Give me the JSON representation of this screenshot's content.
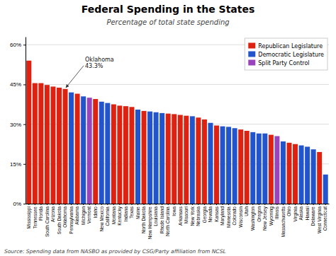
{
  "chart_data": {
    "type": "bar",
    "title": "Federal Spending in the States",
    "subtitle": "Percentage of total state spending",
    "source": "Source: Spending data from NASBO as provided by CSG/Party affiliation from NCSL",
    "categories": [
      "Mississippi",
      "Tennessee",
      "Florida",
      "South Carolina",
      "Arizona",
      "South Dakota",
      "Oklahoma",
      "Pennsylvania",
      "Alabama",
      "Michigan",
      "Vermont",
      "Idaho",
      "New Mexico",
      "California",
      "Montana",
      "Kentucky",
      "Indiana",
      "Texas",
      "Maine",
      "North Dakota",
      "New Hampshire",
      "Louisiana",
      "Rhode Island",
      "North Carolina",
      "Iowa",
      "Arkansas",
      "Missouri",
      "New York",
      "Nebraska",
      "Georgia",
      "Nevada",
      "Kansas",
      "Maryland",
      "Minnesota",
      "Colorado",
      "Wisconsin",
      "Utah",
      "Washington",
      "Oregon",
      "New Jersey",
      "Wyoming",
      "Illinois",
      "Massachusetts",
      "Ohio",
      "Virginia",
      "Alaska",
      "Hawaii",
      "Delaware",
      "West Virginia",
      "Connecticut"
    ],
    "values": [
      54.0,
      45.5,
      45.5,
      44.8,
      44.2,
      43.8,
      43.3,
      42.0,
      41.5,
      40.5,
      40.0,
      39.5,
      38.5,
      38.0,
      37.5,
      37.0,
      36.8,
      36.5,
      35.5,
      35.0,
      34.8,
      34.5,
      34.2,
      34.0,
      33.8,
      33.5,
      33.2,
      33.0,
      32.5,
      31.8,
      30.5,
      29.5,
      29.2,
      29.0,
      28.5,
      28.0,
      27.5,
      27.0,
      26.5,
      26.5,
      26.0,
      25.5,
      23.5,
      23.0,
      22.5,
      22.0,
      21.5,
      20.5,
      19.5,
      11.0
    ],
    "colors": [
      "#dd2211",
      "#dd2211",
      "#dd2211",
      "#dd2211",
      "#dd2211",
      "#dd2211",
      "#dd2211",
      "#2255cc",
      "#dd2211",
      "#2255cc",
      "#9944bb",
      "#dd2211",
      "#2255cc",
      "#2255cc",
      "#dd2211",
      "#dd2211",
      "#dd2211",
      "#dd2211",
      "#2255cc",
      "#dd2211",
      "#2255cc",
      "#2255cc",
      "#2255cc",
      "#dd2211",
      "#dd2211",
      "#dd2211",
      "#dd2211",
      "#2255cc",
      "#dd2211",
      "#dd2211",
      "#2255cc",
      "#dd2211",
      "#2255cc",
      "#2255cc",
      "#2255cc",
      "#dd2211",
      "#dd2211",
      "#2255cc",
      "#2255cc",
      "#2255cc",
      "#dd2211",
      "#9944bb",
      "#2255cc",
      "#dd2211",
      "#dd2211",
      "#2255cc",
      "#2255cc",
      "#2255cc",
      "#dd2211",
      "#2255cc"
    ],
    "legend_entries": [
      {
        "label": "Republican Legislature",
        "color": "#dd2211"
      },
      {
        "label": "Democratic Legislature",
        "color": "#2255cc"
      },
      {
        "label": "Split Party Control",
        "color": "#9944bb"
      }
    ],
    "legend": "upper right",
    "annotations": [
      {
        "category": "Oklahoma",
        "lines": [
          "Oklahoma",
          "43.3%"
        ]
      }
    ],
    "ylim": [
      0,
      63
    ],
    "yticks": [
      {
        "value": 0,
        "label": "0%"
      },
      {
        "value": 15,
        "label": "15%"
      },
      {
        "value": 30,
        "label": "30%"
      },
      {
        "value": 45,
        "label": "45%"
      },
      {
        "value": 60,
        "label": "60%"
      }
    ],
    "grid": true
  }
}
